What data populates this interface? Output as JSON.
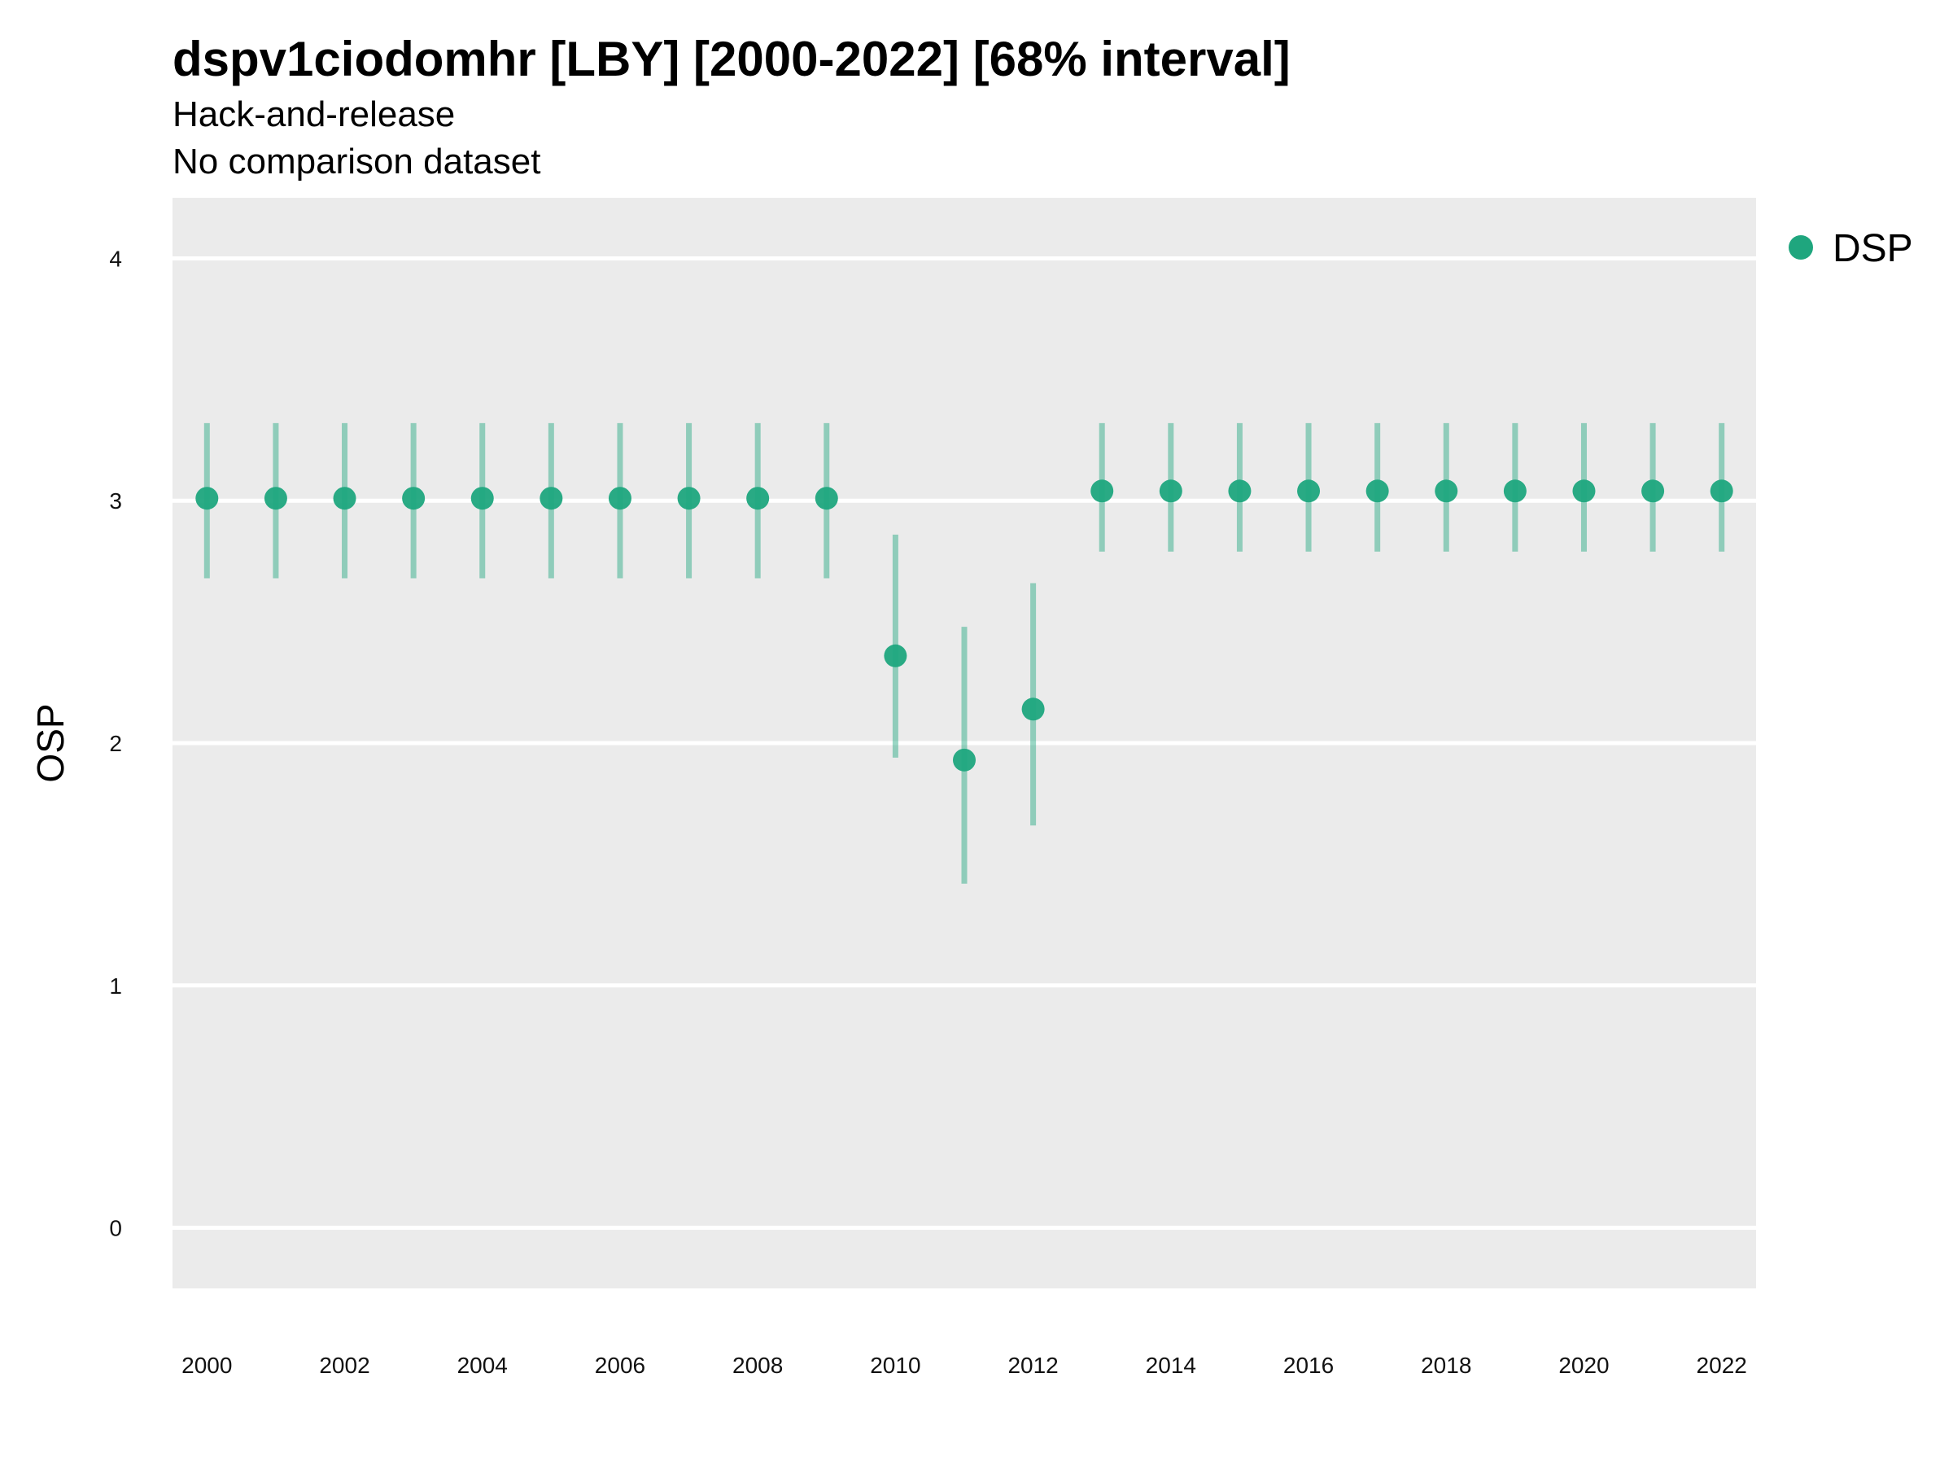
{
  "chart_data": {
    "type": "scatter",
    "title": "dspv1ciodomhr [LBY] [2000-2022] [68% interval]",
    "subtitle": [
      "Hack-and-release",
      "No comparison dataset"
    ],
    "xlabel": "",
    "ylabel": "OSP",
    "x_ticks": [
      "2000",
      "2002",
      "2004",
      "2006",
      "2008",
      "2010",
      "2012",
      "2014",
      "2016",
      "2018",
      "2020",
      "2022"
    ],
    "y_ticks": [
      "0",
      "1",
      "2",
      "3",
      "4"
    ],
    "xlim": [
      1999.5,
      2022.5
    ],
    "ylim": [
      -0.25,
      4.25
    ],
    "grid": "horizontal",
    "panel_background": "#EBEBEB",
    "legend_position": "right",
    "series": [
      {
        "name": "DSP",
        "color": "#1FA67E",
        "x": [
          2000,
          2001,
          2002,
          2003,
          2004,
          2005,
          2006,
          2007,
          2008,
          2009,
          2010,
          2011,
          2012,
          2013,
          2014,
          2015,
          2016,
          2017,
          2018,
          2019,
          2020,
          2021,
          2022
        ],
        "y": [
          3.01,
          3.01,
          3.01,
          3.01,
          3.01,
          3.01,
          3.01,
          3.01,
          3.01,
          3.01,
          2.36,
          1.93,
          2.14,
          3.04,
          3.04,
          3.04,
          3.04,
          3.04,
          3.04,
          3.04,
          3.04,
          3.04,
          3.04
        ],
        "lower": [
          2.68,
          2.68,
          2.68,
          2.68,
          2.68,
          2.68,
          2.68,
          2.68,
          2.68,
          2.68,
          1.94,
          1.42,
          1.66,
          2.79,
          2.79,
          2.79,
          2.79,
          2.79,
          2.79,
          2.79,
          2.79,
          2.79,
          2.79
        ],
        "upper": [
          3.32,
          3.32,
          3.32,
          3.32,
          3.32,
          3.32,
          3.32,
          3.32,
          3.32,
          3.32,
          2.86,
          2.48,
          2.66,
          3.32,
          3.32,
          3.32,
          3.32,
          3.32,
          3.32,
          3.32,
          3.32,
          3.32,
          3.32
        ]
      }
    ]
  }
}
